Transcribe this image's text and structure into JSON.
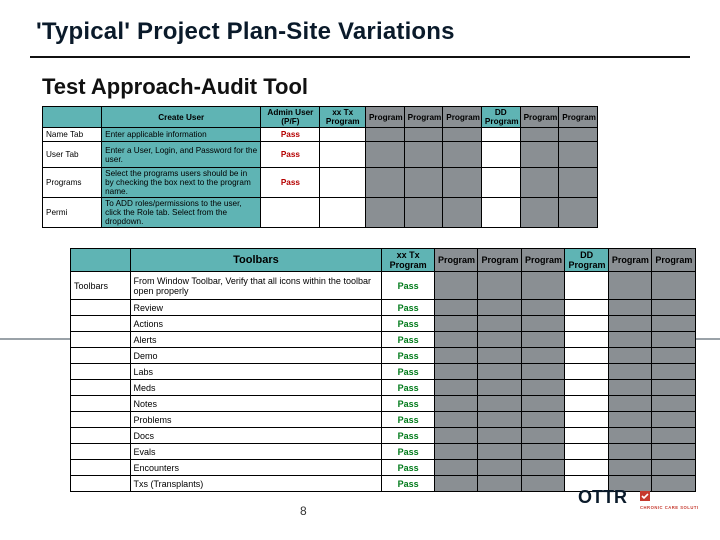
{
  "title": "'Typical' Project Plan-Site Variations",
  "subtitle": "Test Approach-Audit Tool",
  "pagenum": "8",
  "tableA": {
    "headers": {
      "col2": "Create User",
      "col3": "Admin User (P/F)",
      "col4": "xx Tx Program",
      "p1": "Program",
      "p2": "Program",
      "p3": "Program",
      "dd": "DD Program",
      "p5": "Program",
      "p6": "Program"
    },
    "rows": [
      {
        "label": "Name Tab",
        "desc": "Enter applicable information",
        "status": "Pass",
        "statusClass": "red"
      },
      {
        "label": "User Tab",
        "desc": "Enter a User, Login, and Password for the user.",
        "status": "Pass",
        "statusClass": "red",
        "tall": true
      },
      {
        "label": "Programs",
        "desc": "Select the programs users should be in by checking the box next to the program name.",
        "status": "Pass",
        "statusClass": "red",
        "tall": true
      },
      {
        "label": "Permi",
        "desc": "To ADD roles/permissions to the user, click the Role tab. Select from the dropdown.",
        "status": "",
        "statusClass": "",
        "tall": true
      }
    ]
  },
  "tableB": {
    "headers": {
      "col2": "Toolbars",
      "col3": "xx Tx Program",
      "p1": "Program",
      "p2": "Program",
      "p3": "Program",
      "dd": "DD Program",
      "p5": "Program",
      "p6": "Program"
    },
    "rows": [
      {
        "label": "Toolbars",
        "desc": "From Window Toolbar, Verify that all icons within the toolbar open properly",
        "status": "Pass",
        "tall": true
      },
      {
        "label": "",
        "desc": "Review",
        "status": "Pass"
      },
      {
        "label": "",
        "desc": "Actions",
        "status": "Pass"
      },
      {
        "label": "",
        "desc": "Alerts",
        "status": "Pass"
      },
      {
        "label": "",
        "desc": "Demo",
        "status": "Pass"
      },
      {
        "label": "",
        "desc": "Labs",
        "status": "Pass"
      },
      {
        "label": "",
        "desc": "Meds",
        "status": "Pass"
      },
      {
        "label": "",
        "desc": "Notes",
        "status": "Pass"
      },
      {
        "label": "",
        "desc": "Problems",
        "status": "Pass"
      },
      {
        "label": "",
        "desc": "Docs",
        "status": "Pass"
      },
      {
        "label": "",
        "desc": "Evals",
        "status": "Pass"
      },
      {
        "label": "",
        "desc": "Encounters",
        "status": "Pass"
      },
      {
        "label": "",
        "desc": "Txs (Transplants)",
        "status": "Pass"
      }
    ]
  },
  "logo": {
    "text1": "OTTR",
    "text2": "CHRONIC CARE SOLUTIONS",
    "color": "#111"
  }
}
